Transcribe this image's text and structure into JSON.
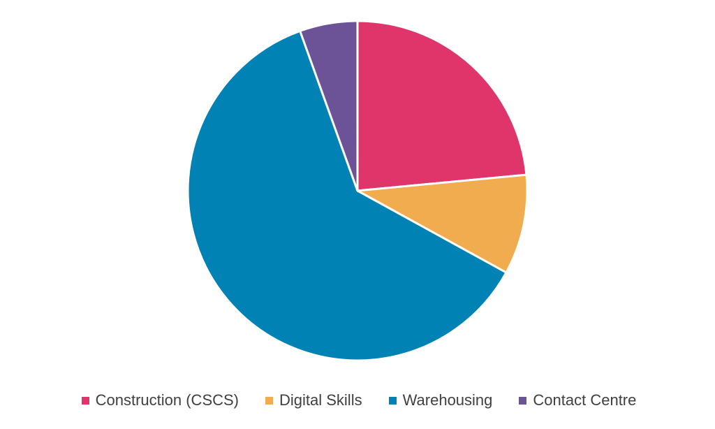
{
  "chart_data": {
    "type": "pie",
    "title": "",
    "categories": [
      "Construction (CSCS)",
      "Digital Skills",
      "Warehousing",
      "Contact Centre"
    ],
    "values": [
      23.5,
      9.5,
      61.5,
      5.5
    ],
    "colors": [
      "#E0356A",
      "#F0AC4F",
      "#0082B4",
      "#6C5398"
    ],
    "legend_position": "bottom"
  }
}
